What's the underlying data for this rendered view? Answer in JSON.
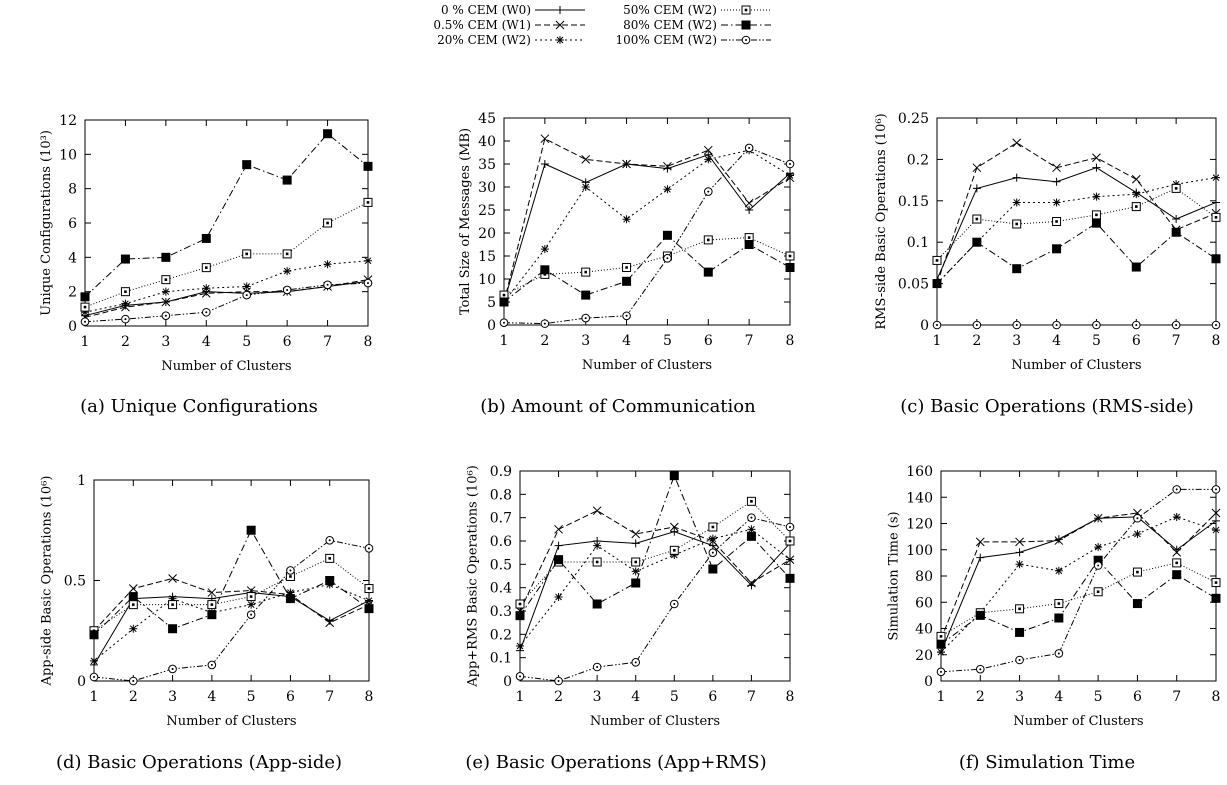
{
  "legend": {
    "entries": [
      {
        "label": "0 % CEM (W0)",
        "style": "solid",
        "marker": "plus"
      },
      {
        "label": "0.5% CEM (W1)",
        "style": "dashed",
        "marker": "cross"
      },
      {
        "label": "20% CEM (W2)",
        "style": "dotted",
        "marker": "star"
      },
      {
        "label": "50% CEM (W2)",
        "style": "finedot",
        "marker": "openSquare"
      },
      {
        "label": "80% CEM (W2)",
        "style": "dashdot",
        "marker": "filledSquare"
      },
      {
        "label": "100% CEM (W2)",
        "style": "dashdotdot",
        "marker": "openCircle"
      }
    ]
  },
  "chart_data": [
    {
      "type": "line",
      "caption": "(a) Unique Configurations",
      "xlabel": "Number of Clusters",
      "ylabel": "Unique Configurations (10³)",
      "x": [
        1,
        2,
        3,
        4,
        5,
        6,
        7,
        8
      ],
      "xlim": [
        1,
        8
      ],
      "ylim": [
        0,
        12
      ],
      "yticks": [
        0,
        2,
        4,
        6,
        8,
        10,
        12
      ],
      "ytick_labels": [
        "0",
        "2",
        "4",
        "6",
        "8",
        "10",
        "12"
      ],
      "series": [
        {
          "name": "0 % CEM (W0)",
          "values": [
            0.6,
            1.2,
            1.4,
            2.0,
            1.9,
            2.0,
            2.3,
            2.6
          ]
        },
        {
          "name": "0.5% CEM (W1)",
          "values": [
            0.5,
            1.1,
            1.4,
            1.9,
            2.0,
            2.0,
            2.3,
            2.7
          ]
        },
        {
          "name": "20% CEM (W2)",
          "values": [
            0.8,
            1.3,
            2.0,
            2.2,
            2.3,
            3.2,
            3.6,
            3.8
          ]
        },
        {
          "name": "50% CEM (W2)",
          "values": [
            1.1,
            2.0,
            2.7,
            3.4,
            4.2,
            4.2,
            6.0,
            7.2
          ]
        },
        {
          "name": "80% CEM (W2)",
          "values": [
            1.7,
            3.9,
            4.0,
            5.1,
            9.4,
            8.5,
            11.2,
            9.3
          ]
        },
        {
          "name": "100% CEM (W2)",
          "values": [
            0.25,
            0.4,
            0.6,
            0.8,
            1.8,
            2.1,
            2.4,
            2.5
          ]
        }
      ]
    },
    {
      "type": "line",
      "caption": "(b) Amount of Communication",
      "xlabel": "Number of Clusters",
      "ylabel": "Total Size of Messages (MB)",
      "x": [
        1,
        2,
        3,
        4,
        5,
        6,
        7,
        8
      ],
      "xlim": [
        1,
        8
      ],
      "ylim": [
        0,
        45
      ],
      "yticks": [
        0,
        5,
        10,
        15,
        20,
        25,
        30,
        35,
        40,
        45
      ],
      "ytick_labels": [
        "0",
        "5",
        "10",
        "15",
        "20",
        "25",
        "30",
        "35",
        "40",
        "45"
      ],
      "series": [
        {
          "name": "0 % CEM (W0)",
          "values": [
            5,
            35,
            31,
            35,
            34,
            37,
            25,
            33
          ]
        },
        {
          "name": "0.5% CEM (W1)",
          "values": [
            5,
            40.5,
            36,
            35,
            34.5,
            38,
            26.5,
            32
          ]
        },
        {
          "name": "20% CEM (W2)",
          "values": [
            5,
            16.5,
            30,
            23,
            29.5,
            36,
            38,
            32.5
          ]
        },
        {
          "name": "50% CEM (W2)",
          "values": [
            6.5,
            11,
            11.5,
            12.5,
            15,
            18.5,
            19,
            15
          ]
        },
        {
          "name": "80% CEM (W2)",
          "values": [
            5,
            12,
            6.5,
            9.5,
            19.5,
            11.5,
            17.5,
            12.5
          ]
        },
        {
          "name": "100% CEM (W2)",
          "values": [
            0.5,
            0.3,
            1.5,
            2,
            14.5,
            29,
            38.5,
            35
          ]
        }
      ]
    },
    {
      "type": "line",
      "caption": "(c) Basic Operations (RMS-side)",
      "xlabel": "Number of Clusters",
      "ylabel": "RMS-side Basic Operations (10⁶)",
      "x": [
        1,
        2,
        3,
        4,
        5,
        6,
        7,
        8
      ],
      "xlim": [
        1,
        8
      ],
      "ylim": [
        0,
        0.25
      ],
      "yticks": [
        0,
        0.05,
        0.1,
        0.15,
        0.2,
        0.25
      ],
      "ytick_labels": [
        "0",
        "0.05",
        "0.1",
        "0.15",
        "0.2",
        "0.25"
      ],
      "series": [
        {
          "name": "0 % CEM (W0)",
          "values": [
            0.055,
            0.165,
            0.178,
            0.173,
            0.19,
            0.16,
            0.128,
            0.148
          ]
        },
        {
          "name": "0.5% CEM (W1)",
          "values": [
            0.05,
            0.19,
            0.22,
            0.19,
            0.202,
            0.176,
            0.115,
            0.135
          ]
        },
        {
          "name": "20% CEM (W2)",
          "values": [
            0.05,
            0.1,
            0.148,
            0.148,
            0.155,
            0.158,
            0.17,
            0.178
          ]
        },
        {
          "name": "50% CEM (W2)",
          "values": [
            0.078,
            0.128,
            0.122,
            0.125,
            0.133,
            0.143,
            0.165,
            0.13
          ]
        },
        {
          "name": "80% CEM (W2)",
          "values": [
            0.05,
            0.1,
            0.068,
            0.092,
            0.123,
            0.07,
            0.112,
            0.08
          ]
        },
        {
          "name": "100% CEM (W2)",
          "values": [
            0,
            0,
            0,
            0,
            0,
            0,
            0,
            0
          ]
        }
      ]
    },
    {
      "type": "line",
      "caption": "(d) Basic Operations (App-side)",
      "xlabel": "Number of Clusters",
      "ylabel": "App-side Basic Operations (10⁶)",
      "x": [
        1,
        2,
        3,
        4,
        5,
        6,
        7,
        8
      ],
      "xlim": [
        1,
        8
      ],
      "ylim": [
        0,
        1
      ],
      "yticks": [
        0,
        0.5,
        1
      ],
      "ytick_labels": [
        "0",
        "0.5",
        "1"
      ],
      "series": [
        {
          "name": "0 % CEM (W0)",
          "values": [
            0.08,
            0.41,
            0.42,
            0.41,
            0.44,
            0.42,
            0.3,
            0.4
          ]
        },
        {
          "name": "0.5% CEM (W1)",
          "values": [
            0.25,
            0.46,
            0.51,
            0.44,
            0.45,
            0.43,
            0.29,
            0.38
          ]
        },
        {
          "name": "20% CEM (W2)",
          "values": [
            0.1,
            0.26,
            0.41,
            0.34,
            0.38,
            0.44,
            0.48,
            0.4
          ]
        },
        {
          "name": "50% CEM (W2)",
          "values": [
            0.25,
            0.38,
            0.38,
            0.38,
            0.42,
            0.52,
            0.61,
            0.46
          ]
        },
        {
          "name": "80% CEM (W2)",
          "values": [
            0.23,
            0.42,
            0.26,
            0.33,
            0.75,
            0.41,
            0.5,
            0.36
          ]
        },
        {
          "name": "100% CEM (W2)",
          "values": [
            0.02,
            0.0,
            0.06,
            0.08,
            0.33,
            0.55,
            0.7,
            0.66
          ]
        }
      ]
    },
    {
      "type": "line",
      "caption": "(e) Basic Operations (App+RMS)",
      "xlabel": "Number of Clusters",
      "ylabel": "App+RMS Basic Operations (10⁶)",
      "x": [
        1,
        2,
        3,
        4,
        5,
        6,
        7,
        8
      ],
      "xlim": [
        1,
        8
      ],
      "ylim": [
        0,
        0.9
      ],
      "yticks": [
        0,
        0.1,
        0.2,
        0.3,
        0.4,
        0.5,
        0.6,
        0.7,
        0.8,
        0.9
      ],
      "ytick_labels": [
        "0",
        "0.1",
        "0.2",
        "0.3",
        "0.4",
        "0.5",
        "0.6",
        "0.7",
        "0.8",
        "0.9"
      ],
      "series": [
        {
          "name": "0 % CEM (W0)",
          "values": [
            0.13,
            0.58,
            0.6,
            0.59,
            0.64,
            0.58,
            0.41,
            0.59
          ]
        },
        {
          "name": "0.5% CEM (W1)",
          "values": [
            0.3,
            0.65,
            0.73,
            0.63,
            0.66,
            0.6,
            0.42,
            0.52
          ]
        },
        {
          "name": "20% CEM (W2)",
          "values": [
            0.15,
            0.36,
            0.58,
            0.47,
            0.54,
            0.61,
            0.65,
            0.52
          ]
        },
        {
          "name": "50% CEM (W2)",
          "values": [
            0.33,
            0.51,
            0.51,
            0.51,
            0.56,
            0.66,
            0.77,
            0.6
          ]
        },
        {
          "name": "80% CEM (W2)",
          "values": [
            0.28,
            0.52,
            0.33,
            0.42,
            0.88,
            0.48,
            0.62,
            0.44
          ]
        },
        {
          "name": "100% CEM (W2)",
          "values": [
            0.02,
            0.0,
            0.06,
            0.08,
            0.33,
            0.55,
            0.7,
            0.66
          ]
        }
      ]
    },
    {
      "type": "line",
      "caption": "(f) Simulation Time",
      "xlabel": "Number of Clusters",
      "ylabel": "Simulation Time (s)",
      "x": [
        1,
        2,
        3,
        4,
        5,
        6,
        7,
        8
      ],
      "xlim": [
        1,
        8
      ],
      "ylim": [
        0,
        160
      ],
      "yticks": [
        0,
        20,
        40,
        60,
        80,
        100,
        120,
        140,
        160
      ],
      "ytick_labels": [
        "0",
        "20",
        "40",
        "60",
        "80",
        "100",
        "120",
        "140",
        "160"
      ],
      "series": [
        {
          "name": "0 % CEM (W0)",
          "values": [
            22,
            94,
            98,
            108,
            124,
            125,
            100,
            122
          ]
        },
        {
          "name": "0.5% CEM (W1)",
          "values": [
            32,
            106,
            106,
            107,
            124,
            128,
            98,
            128
          ]
        },
        {
          "name": "20% CEM (W2)",
          "values": [
            22,
            52,
            89,
            84,
            102,
            112,
            125,
            115
          ]
        },
        {
          "name": "50% CEM (W2)",
          "values": [
            34,
            52,
            55,
            59,
            68,
            83,
            90,
            75
          ]
        },
        {
          "name": "80% CEM (W2)",
          "values": [
            28,
            50,
            37,
            48,
            92,
            59,
            81,
            63
          ]
        },
        {
          "name": "100% CEM (W2)",
          "values": [
            7,
            9,
            16,
            21,
            88,
            124,
            146,
            146
          ]
        }
      ]
    }
  ]
}
